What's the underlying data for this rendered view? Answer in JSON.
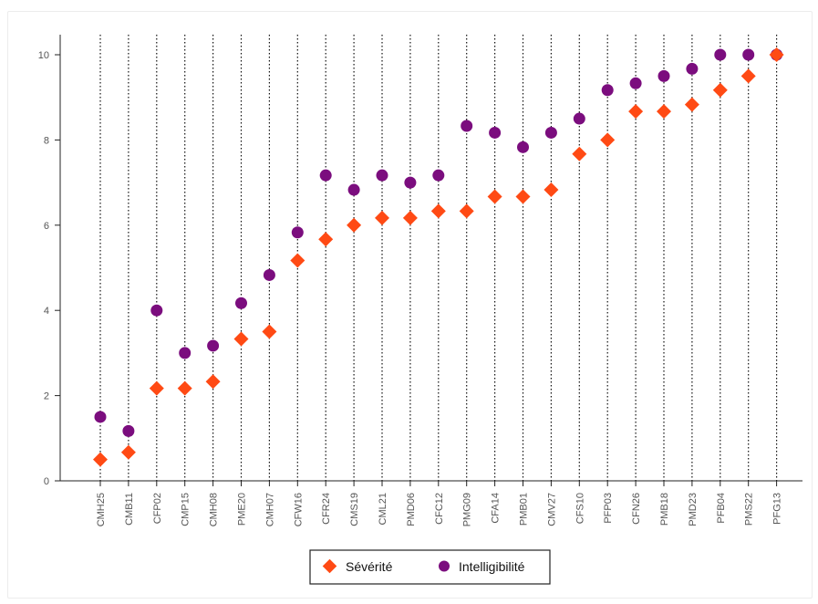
{
  "chart_data": {
    "type": "scatter",
    "categories": [
      "CMH25",
      "CMB11",
      "CFP02",
      "CMP15",
      "CMH08",
      "PME20",
      "CMH07",
      "CFW16",
      "CFR24",
      "CMS19",
      "CML21",
      "PMD06",
      "CFC12",
      "PMG09",
      "CFA14",
      "PMB01",
      "CMV27",
      "CFS10",
      "PFP03",
      "CFN26",
      "PMB18",
      "PMD23",
      "PFB04",
      "PMS22",
      "PFG13"
    ],
    "series": [
      {
        "name": "Sévérité",
        "marker": "diamond",
        "color": "#ff4a14",
        "values": [
          0.5,
          0.67,
          2.17,
          2.17,
          2.33,
          3.33,
          3.5,
          5.17,
          5.67,
          6.0,
          6.17,
          6.17,
          6.33,
          6.33,
          6.67,
          6.67,
          6.83,
          7.67,
          8.0,
          8.67,
          8.67,
          8.83,
          9.17,
          9.5,
          10.0
        ]
      },
      {
        "name": "Intelligibilité",
        "marker": "circle",
        "color": "#7b0d7e",
        "values": [
          1.5,
          1.17,
          4.0,
          3.0,
          3.17,
          4.17,
          4.83,
          5.83,
          7.17,
          6.83,
          7.17,
          7.0,
          7.17,
          8.33,
          8.17,
          7.83,
          8.17,
          8.5,
          9.17,
          9.33,
          9.5,
          9.67,
          10.0,
          10.0,
          10.0
        ]
      }
    ],
    "yticks": [
      0,
      2,
      4,
      6,
      8,
      10
    ],
    "ylim": [
      0,
      10.5
    ],
    "xlabel": "",
    "ylabel": "",
    "grid": "vertical-dotted",
    "legend_position": "bottom"
  }
}
